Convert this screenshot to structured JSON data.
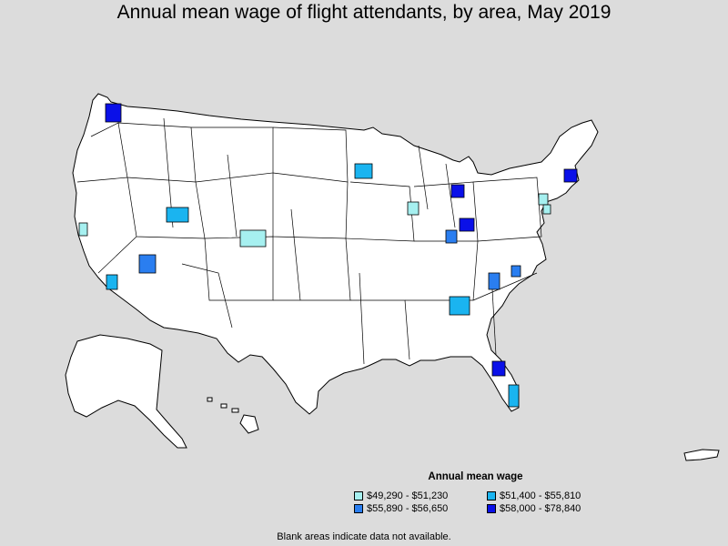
{
  "title": "Annual mean wage of flight attendants, by area, May 2019",
  "legend": {
    "title": "Annual mean wage",
    "items": [
      {
        "label": "$49,290 - $51,230",
        "color": "#a6f0f0"
      },
      {
        "label": "$51,400 - $55,810",
        "color": "#1ab4f0"
      },
      {
        "label": "$55,890 - $56,650",
        "color": "#2a7ef0"
      },
      {
        "label": "$58,000 - $78,840",
        "color": "#0a10e8"
      }
    ]
  },
  "note": "Blank areas indicate data not available.",
  "colors": {
    "background": "#dcdcdc",
    "land": "#ffffff",
    "border": "#000000"
  }
}
